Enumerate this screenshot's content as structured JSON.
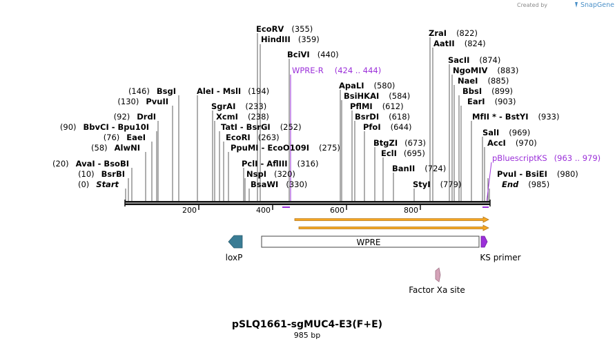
{
  "credit": {
    "prefix": "Created by",
    "brand": "SnapGene"
  },
  "title": "pSLQ1661-sgMUC4-E3(F+E)",
  "length_label": "985 bp",
  "ruler": {
    "ticks": [
      "200",
      "400",
      "600",
      "800"
    ]
  },
  "enzymes": [
    {
      "name": "EcoRV",
      "pos": "(355)"
    },
    {
      "name": "HindIII",
      "pos": "(359)"
    },
    {
      "name": "BciVI",
      "pos": "(440)"
    },
    {
      "name": "BsgI",
      "pos": "(146)"
    },
    {
      "name": "PvuII",
      "pos": "(130)"
    },
    {
      "name": "DrdI",
      "pos": "(92)"
    },
    {
      "name": "BbvCI - Bpu10I",
      "pos": "(90)"
    },
    {
      "name": "EaeI",
      "pos": "(76)"
    },
    {
      "name": "AlwNI",
      "pos": "(58)"
    },
    {
      "name": "AvaI - BsoBI",
      "pos": "(20)"
    },
    {
      "name": "BsrBI",
      "pos": "(10)"
    },
    {
      "name": "Start",
      "pos": "(0)"
    },
    {
      "name": "AleI - MslI",
      "pos": "(194)"
    },
    {
      "name": "SgrAI",
      "pos": "(233)"
    },
    {
      "name": "XcmI",
      "pos": "(238)"
    },
    {
      "name": "TatI - BsrGI",
      "pos": "(252)"
    },
    {
      "name": "EcoRI",
      "pos": "(263)"
    },
    {
      "name": "PpuMI - EcoO109I",
      "pos": "(275)"
    },
    {
      "name": "PclI - AflIII",
      "pos": "(316)"
    },
    {
      "name": "NspI",
      "pos": "(320)"
    },
    {
      "name": "BsaWI",
      "pos": "(330)"
    },
    {
      "name": "ApaLI",
      "pos": "(580)"
    },
    {
      "name": "BsiHKAI",
      "pos": "(584)"
    },
    {
      "name": "PflMI",
      "pos": "(612)"
    },
    {
      "name": "BsrDI",
      "pos": "(618)"
    },
    {
      "name": "PfoI",
      "pos": "(644)"
    },
    {
      "name": "BtgZI",
      "pos": "(673)"
    },
    {
      "name": "EclI",
      "pos": "(695)"
    },
    {
      "name": "BanII",
      "pos": "(724)"
    },
    {
      "name": "StyI",
      "pos": "(779)"
    },
    {
      "name": "ZraI",
      "pos": "(822)"
    },
    {
      "name": "AatII",
      "pos": "(824)"
    },
    {
      "name": "SacII",
      "pos": "(874)"
    },
    {
      "name": "NgoMIV",
      "pos": "(883)"
    },
    {
      "name": "NaeI",
      "pos": "(885)"
    },
    {
      "name": "BbsI",
      "pos": "(899)"
    },
    {
      "name": "EarI",
      "pos": "(903)"
    },
    {
      "name": "MfII * - BstYI",
      "pos": "(933)"
    },
    {
      "name": "SalI",
      "pos": "(969)"
    },
    {
      "name": "AccI",
      "pos": "(970)"
    },
    {
      "name": "PvuI - BsiEI",
      "pos": "(980)"
    },
    {
      "name": "End",
      "pos": "(985)"
    }
  ],
  "primers": [
    {
      "name": "WPRE-R",
      "range": "(424 .. 444)"
    },
    {
      "name": "pBluescriptKS",
      "range": "(963 .. 979)"
    }
  ],
  "features": {
    "wpre": "WPRE",
    "loxp": "loxP",
    "ks_primer": "KS primer",
    "factor_xa": "Factor Xa site"
  },
  "colors": {
    "primer": "#9b30d9",
    "loxp": "#3a7c94",
    "ks_primer": "#9b30d9",
    "factor_xa": "#d4a3b8",
    "orf_fill": "#f5a623",
    "orf_border": "#b5791e"
  }
}
